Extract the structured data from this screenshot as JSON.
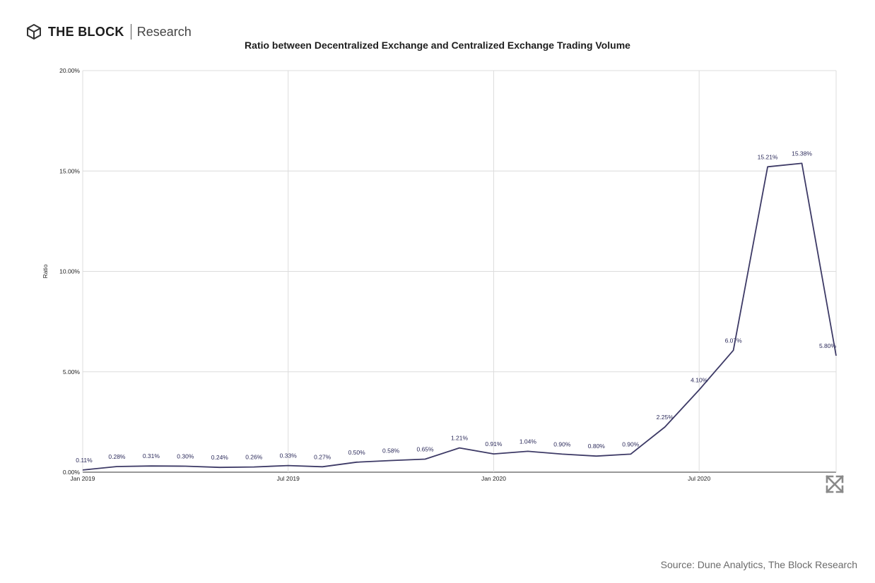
{
  "header": {
    "brand": "THE BLOCK",
    "subbrand": "Research",
    "logo_icon": "cube-logo-icon"
  },
  "footer": {
    "source": "Source: Dune Analytics, The Block Research"
  },
  "controls": {
    "expand_icon": "expand-arrows-icon"
  },
  "colors": {
    "line": "#3d3a66",
    "grid": "#dcdcdc",
    "label": "#2b2a5a"
  },
  "chart_data": {
    "type": "line",
    "title": "Ratio between Decentralized Exchange and Centralized Exchange Trading Volume",
    "xlabel": "",
    "ylabel": "Ratio",
    "ylim": [
      0,
      20
    ],
    "grid": true,
    "y_ticks": [
      {
        "value": 0,
        "label": "0.00%"
      },
      {
        "value": 5,
        "label": "5.00%"
      },
      {
        "value": 10,
        "label": "10.00%"
      },
      {
        "value": 15,
        "label": "15.00%"
      },
      {
        "value": 20,
        "label": "20.00%"
      }
    ],
    "x_ticks": [
      {
        "x": "2019-01",
        "label": "Jan 2019"
      },
      {
        "x": "2019-07",
        "label": "Jul 2019"
      },
      {
        "x": "2020-01",
        "label": "Jan 2020"
      },
      {
        "x": "2020-07",
        "label": "Jul 2020"
      }
    ],
    "series": [
      {
        "name": "",
        "points": [
          {
            "x": "2019-01",
            "y": 0.11,
            "label": "0.11%"
          },
          {
            "x": "2019-02",
            "y": 0.28,
            "label": "0.28%"
          },
          {
            "x": "2019-03",
            "y": 0.31,
            "label": "0.31%"
          },
          {
            "x": "2019-04",
            "y": 0.3,
            "label": "0.30%"
          },
          {
            "x": "2019-05",
            "y": 0.24,
            "label": "0.24%"
          },
          {
            "x": "2019-06",
            "y": 0.26,
            "label": "0.26%"
          },
          {
            "x": "2019-07",
            "y": 0.33,
            "label": "0.33%"
          },
          {
            "x": "2019-08",
            "y": 0.27,
            "label": "0.27%"
          },
          {
            "x": "2019-09",
            "y": 0.5,
            "label": "0.50%"
          },
          {
            "x": "2019-10",
            "y": 0.58,
            "label": "0.58%"
          },
          {
            "x": "2019-11",
            "y": 0.65,
            "label": "0.65%"
          },
          {
            "x": "2019-12",
            "y": 1.21,
            "label": "1.21%"
          },
          {
            "x": "2020-01",
            "y": 0.91,
            "label": "0.91%"
          },
          {
            "x": "2020-02",
            "y": 1.04,
            "label": "1.04%"
          },
          {
            "x": "2020-03",
            "y": 0.9,
            "label": "0.90%"
          },
          {
            "x": "2020-04",
            "y": 0.8,
            "label": "0.80%"
          },
          {
            "x": "2020-05",
            "y": 0.9,
            "label": "0.90%"
          },
          {
            "x": "2020-06",
            "y": 2.25,
            "label": "2.25%"
          },
          {
            "x": "2020-07",
            "y": 4.1,
            "label": "4.10%"
          },
          {
            "x": "2020-08",
            "y": 6.07,
            "label": "6.07%"
          },
          {
            "x": "2020-09",
            "y": 15.21,
            "label": "15.21%"
          },
          {
            "x": "2020-10",
            "y": 15.38,
            "label": "15.38%"
          },
          {
            "x": "2020-11",
            "y": 5.8,
            "label": "5.80%"
          }
        ]
      }
    ]
  }
}
